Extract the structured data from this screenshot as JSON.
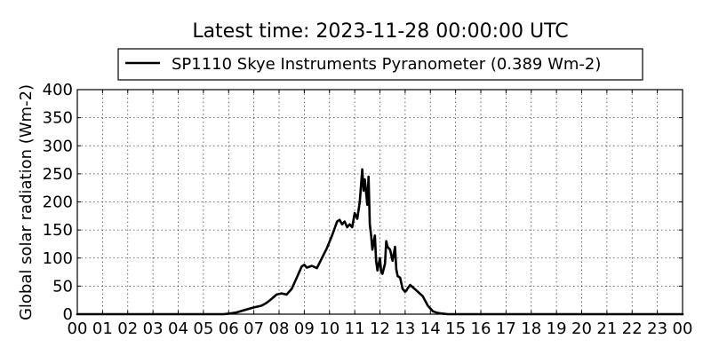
{
  "chart_data": {
    "type": "line",
    "title": "Latest time: 2023-11-28 00:00:00 UTC",
    "xlabel": "",
    "ylabel": "Global solar radiation (Wm-2)",
    "xlim": [
      0,
      24
    ],
    "ylim": [
      0,
      400
    ],
    "x_ticks": [
      0,
      1,
      2,
      3,
      4,
      5,
      6,
      7,
      8,
      9,
      10,
      11,
      12,
      13,
      14,
      15,
      16,
      17,
      18,
      19,
      20,
      21,
      22,
      23,
      24
    ],
    "x_tick_labels": [
      "00",
      "01",
      "02",
      "03",
      "04",
      "05",
      "06",
      "07",
      "08",
      "09",
      "10",
      "11",
      "12",
      "13",
      "14",
      "15",
      "16",
      "17",
      "18",
      "19",
      "20",
      "21",
      "22",
      "23",
      "00"
    ],
    "y_ticks": [
      0,
      50,
      100,
      150,
      200,
      250,
      300,
      350,
      400
    ],
    "y_tick_labels": [
      "0",
      "50",
      "100",
      "150",
      "200",
      "250",
      "300",
      "350",
      "400"
    ],
    "grid": true,
    "legend_position": "top-center",
    "series": [
      {
        "name": "SP1110 Skye Instruments Pyranometer (0.389 Wm-2)",
        "color": "#000000",
        "x": [
          0,
          5.8,
          6.0,
          6.3,
          6.6,
          7.0,
          7.3,
          7.5,
          7.7,
          7.9,
          8.1,
          8.3,
          8.5,
          8.7,
          8.9,
          9.0,
          9.1,
          9.3,
          9.5,
          9.7,
          9.9,
          10.1,
          10.3,
          10.4,
          10.5,
          10.6,
          10.7,
          10.8,
          10.9,
          11.0,
          11.1,
          11.2,
          11.3,
          11.35,
          11.4,
          11.5,
          11.55,
          11.6,
          11.65,
          11.7,
          11.8,
          11.85,
          11.9,
          12.0,
          12.05,
          12.1,
          12.2,
          12.25,
          12.3,
          12.4,
          12.5,
          12.6,
          12.65,
          12.7,
          12.8,
          12.9,
          13.0,
          13.05,
          13.1,
          13.2,
          13.3,
          13.5,
          13.7,
          13.9,
          14.1,
          14.3,
          14.5,
          14.7,
          14.9,
          15.1,
          15.3,
          15.6,
          16.0,
          24.0
        ],
        "y": [
          0,
          0,
          1,
          3,
          7,
          12,
          15,
          20,
          27,
          35,
          37,
          35,
          45,
          65,
          85,
          88,
          83,
          86,
          82,
          100,
          118,
          140,
          165,
          168,
          160,
          165,
          155,
          160,
          155,
          180,
          170,
          200,
          258,
          220,
          240,
          195,
          245,
          160,
          140,
          115,
          140,
          95,
          78,
          100,
          75,
          72,
          90,
          130,
          120,
          115,
          95,
          120,
          80,
          68,
          65,
          45,
          40,
          42,
          46,
          52,
          48,
          40,
          32,
          15,
          5,
          2,
          1,
          0,
          0,
          0,
          0,
          0,
          0,
          0
        ]
      }
    ]
  }
}
